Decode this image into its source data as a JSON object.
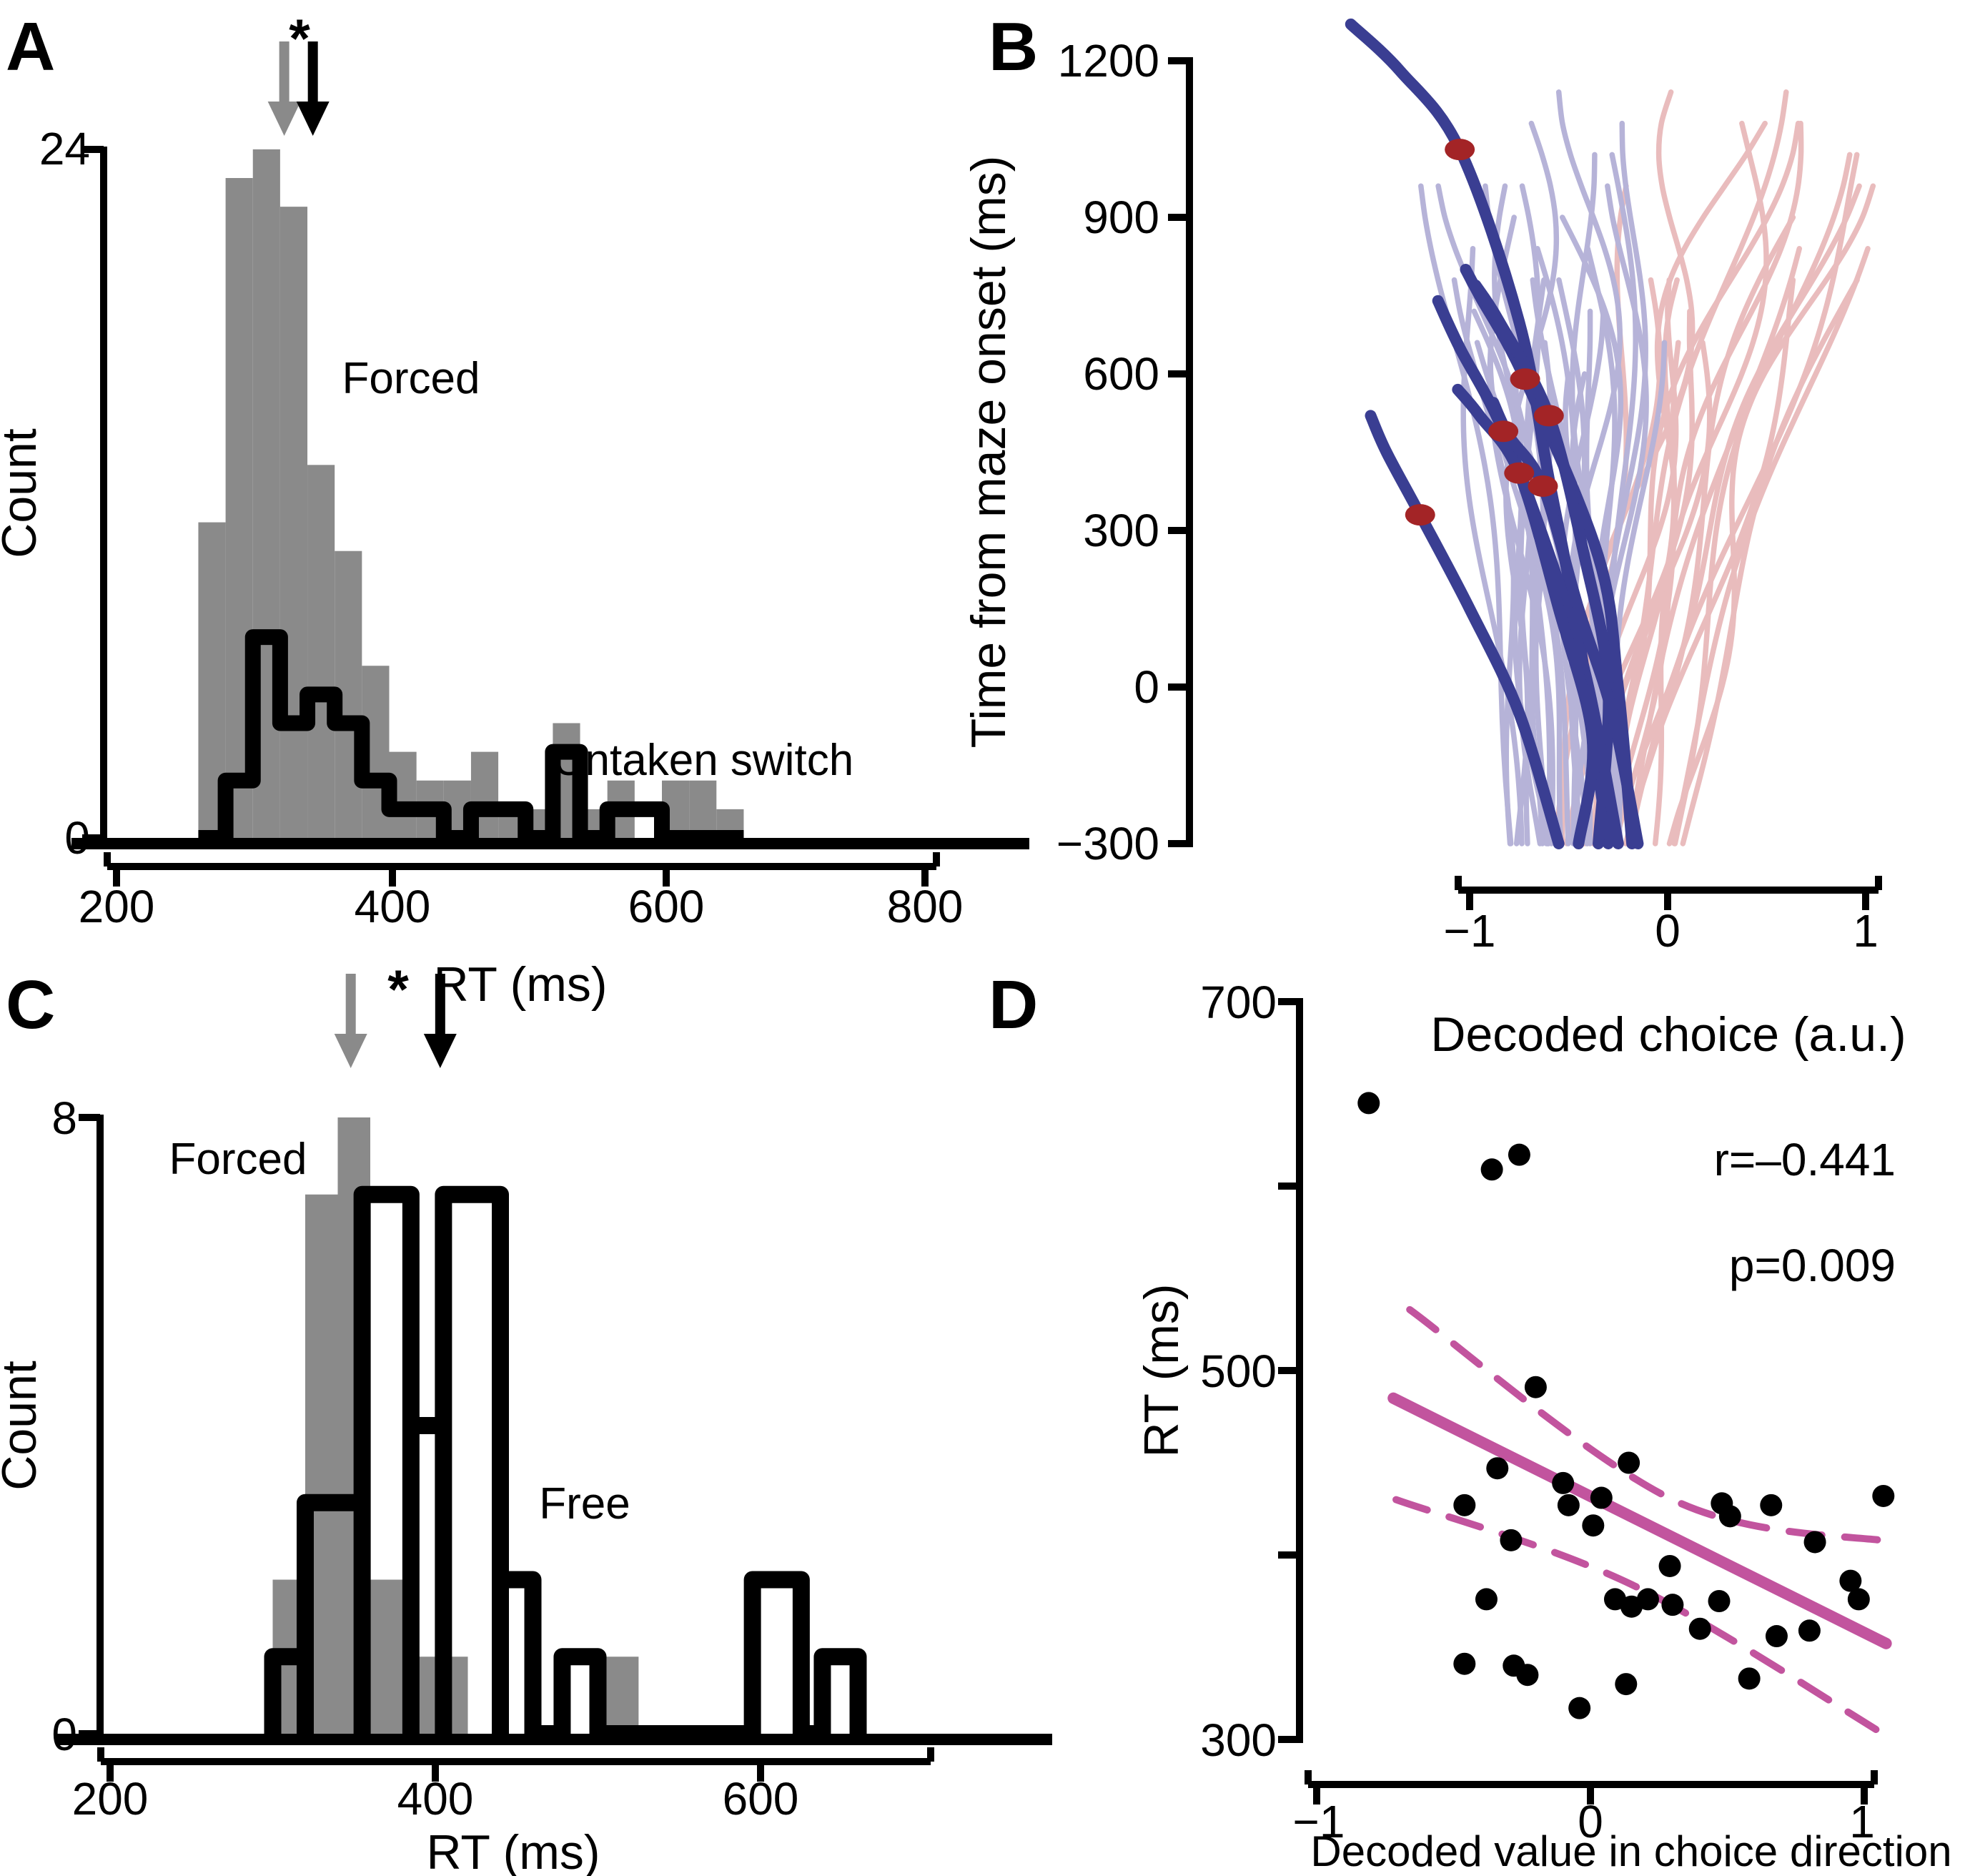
{
  "colors": {
    "black": "#000000",
    "gray_fill": "#8a8a8a",
    "gray_text": "#6f6f6f",
    "gray_arrow": "#8a8a8a",
    "light_blue": "#b6b3d8",
    "light_pink": "#e9bcbd",
    "dark_blue": "#3a3e92",
    "dark_red": "#a32426",
    "magenta": "#c2549e",
    "background": "#ffffff"
  },
  "panels": {
    "a": "A",
    "b": "B",
    "c": "C",
    "d": "D"
  },
  "chart_data": [
    {
      "panel": "A",
      "type": "histogram",
      "xlabel": "RT (ms)",
      "ylabel": "Count",
      "xlim": [
        200,
        800
      ],
      "ylim": [
        0,
        24
      ],
      "xticks": [
        "200",
        "400",
        "600",
        "800"
      ],
      "xtick_values": [
        200,
        400,
        600,
        800
      ],
      "yticks": [
        "24",
        "0"
      ],
      "ytick_values": [
        24,
        0
      ],
      "bin_width_ms": 20,
      "series": [
        {
          "name": "Forced",
          "style": "filled",
          "color_key": "gray_fill",
          "bin_start": 260,
          "values": [
            11,
            23,
            24,
            22,
            13,
            10,
            6,
            3,
            2,
            2,
            3,
            1,
            1,
            4,
            1,
            2,
            0,
            2,
            2,
            1
          ]
        },
        {
          "name": "Untaken switch",
          "style": "outline",
          "color_key": "black",
          "bin_start": 260,
          "values": [
            0,
            2,
            7,
            4,
            5,
            4,
            2,
            1,
            1,
            0,
            1,
            1,
            0,
            3,
            0,
            1,
            1,
            0,
            0,
            0
          ]
        }
      ],
      "arrows": {
        "gray_rt": 323,
        "black_rt": 344
      },
      "asterisk": "*",
      "asterisk_rt": 334
    },
    {
      "panel": "B",
      "type": "trajectories",
      "xlabel": "Decoded choice (a.u.)",
      "ylabel": "Time from maze onset (ms)",
      "xlim": [
        -1,
        1
      ],
      "ylim": [
        -300,
        1200
      ],
      "xticks": [
        "−1",
        "0",
        "1"
      ],
      "xtick_values": [
        -1,
        0,
        1
      ],
      "yticks": [
        "1200",
        "900",
        "600",
        "300",
        "0",
        "−300"
      ],
      "ytick_values": [
        1200,
        900,
        600,
        300,
        0,
        -300
      ],
      "groups": [
        {
          "name": "left-choice trials",
          "color_key": "light_blue",
          "count": 30
        },
        {
          "name": "right-choice trials",
          "color_key": "light_pink",
          "count": 22
        },
        {
          "name": "highlighted switch trials",
          "color_key": "dark_blue",
          "count": 7
        }
      ],
      "highlight_trajectories": [
        [
          [
            -0.3,
            -300
          ],
          [
            -0.45,
            100
          ],
          [
            -0.6,
            400
          ],
          [
            -0.75,
            700
          ],
          [
            -1.05,
            1030
          ],
          [
            -1.35,
            1180
          ],
          [
            -1.6,
            1270
          ]
        ],
        [
          [
            -0.18,
            -300
          ],
          [
            -0.25,
            0
          ],
          [
            -0.35,
            250
          ],
          [
            -0.72,
            590
          ],
          [
            -0.95,
            750
          ],
          [
            -1.02,
            800
          ]
        ],
        [
          [
            -0.35,
            -300
          ],
          [
            -0.3,
            0
          ],
          [
            -0.42,
            250
          ],
          [
            -0.6,
            520
          ],
          [
            -0.85,
            700
          ],
          [
            -0.97,
            770
          ]
        ],
        [
          [
            -0.25,
            -300
          ],
          [
            -0.4,
            0
          ],
          [
            -0.55,
            200
          ],
          [
            -0.83,
            490
          ],
          [
            -1.05,
            650
          ],
          [
            -1.16,
            740
          ]
        ],
        [
          [
            -0.45,
            -300
          ],
          [
            -0.38,
            -100
          ],
          [
            -0.55,
            150
          ],
          [
            -0.75,
            410
          ],
          [
            -0.95,
            520
          ],
          [
            -1.06,
            570
          ]
        ],
        [
          [
            -0.15,
            -300
          ],
          [
            -0.28,
            -50
          ],
          [
            -0.45,
            150
          ],
          [
            -0.63,
            385
          ],
          [
            -0.8,
            480
          ],
          [
            -0.88,
            545
          ]
        ],
        [
          [
            -0.55,
            -300
          ],
          [
            -0.75,
            -50
          ],
          [
            -1.0,
            150
          ],
          [
            -1.25,
            330
          ],
          [
            -1.42,
            450
          ],
          [
            -1.5,
            520
          ]
        ]
      ],
      "event_dots": [
        [
          -1.05,
          1030
        ],
        [
          -0.72,
          590
        ],
        [
          -0.6,
          520
        ],
        [
          -0.83,
          490
        ],
        [
          -0.75,
          410
        ],
        [
          -0.63,
          385
        ],
        [
          -1.25,
          330
        ]
      ],
      "dot_color_key": "dark_red"
    },
    {
      "panel": "C",
      "type": "histogram",
      "xlabel": "RT (ms)",
      "ylabel": "Count",
      "xlim": [
        200,
        700
      ],
      "ylim": [
        0,
        8
      ],
      "xticks": [
        "200",
        "400",
        "600"
      ],
      "xtick_values": [
        200,
        400,
        600
      ],
      "yticks": [
        "8",
        "0"
      ],
      "ytick_values": [
        8,
        0
      ],
      "series": [
        {
          "name": "Forced",
          "style": "filled",
          "color_key": "gray_fill",
          "segments": [
            [
              300,
              320,
              2
            ],
            [
              320,
              340,
              7
            ],
            [
              340,
              360,
              8
            ],
            [
              360,
              380,
              2
            ],
            [
              380,
              400,
              1
            ],
            [
              400,
              420,
              1
            ],
            [
              505,
              525,
              1
            ]
          ]
        },
        {
          "name": "Free",
          "style": "outline",
          "color_key": "black",
          "segments": [
            [
              300,
              320,
              1
            ],
            [
              320,
              355,
              3
            ],
            [
              355,
              385,
              7
            ],
            [
              385,
              405,
              4
            ],
            [
              405,
              440,
              7
            ],
            [
              440,
              460,
              2
            ],
            [
              478,
              500,
              1
            ],
            [
              595,
              625,
              2
            ],
            [
              638,
              660,
              1
            ]
          ]
        }
      ],
      "arrows": {
        "gray_rt": 348,
        "black_rt": 403
      },
      "asterisk": "*",
      "asterisk_rt": 377
    },
    {
      "panel": "D",
      "type": "scatter",
      "xlabel": "Decoded value in choice direction",
      "ylabel": "RT (ms)",
      "xlim": [
        -1,
        1.1
      ],
      "ylim": [
        300,
        700
      ],
      "xticks": [
        "−1",
        "0",
        "1"
      ],
      "xtick_values": [
        -1,
        0,
        1
      ],
      "yticks": [
        "700",
        "500",
        "300"
      ],
      "ytick_values": [
        700,
        500,
        300
      ],
      "minor_ytick_values": [
        600,
        400
      ],
      "points": [
        [
          -0.81,
          645
        ],
        [
          -0.36,
          609
        ],
        [
          -0.26,
          617
        ],
        [
          -0.2,
          491
        ],
        [
          -0.34,
          447
        ],
        [
          -0.46,
          427
        ],
        [
          -0.29,
          408
        ],
        [
          -0.38,
          376
        ],
        [
          -0.46,
          341
        ],
        [
          -0.28,
          340
        ],
        [
          -0.23,
          335
        ],
        [
          0.14,
          450
        ],
        [
          -0.1,
          439
        ],
        [
          -0.08,
          427
        ],
        [
          0.04,
          431
        ],
        [
          0.01,
          416
        ],
        [
          0.29,
          394
        ],
        [
          0.09,
          376
        ],
        [
          0.15,
          372
        ],
        [
          0.21,
          376
        ],
        [
          0.3,
          373
        ],
        [
          0.47,
          375
        ],
        [
          0.4,
          360
        ],
        [
          0.48,
          428
        ],
        [
          0.51,
          421
        ],
        [
          0.66,
          427
        ],
        [
          0.82,
          407
        ],
        [
          0.95,
          386
        ],
        [
          0.98,
          376
        ],
        [
          0.68,
          356
        ],
        [
          0.8,
          359
        ],
        [
          0.58,
          333
        ],
        [
          0.13,
          330
        ],
        [
          -0.04,
          317
        ],
        [
          1.07,
          432
        ]
      ],
      "fit_line": [
        [
          -0.72,
          485
        ],
        [
          1.08,
          352
        ]
      ],
      "ci_upper": [
        [
          -0.66,
          533
        ],
        [
          0.3,
          430
        ],
        [
          1.11,
          407
        ]
      ],
      "ci_lower": [
        [
          -0.71,
          430
        ],
        [
          0.15,
          384
        ],
        [
          1.07,
          303
        ]
      ],
      "stats": {
        "r": "r=–0.441",
        "p": "p=0.009"
      }
    }
  ]
}
